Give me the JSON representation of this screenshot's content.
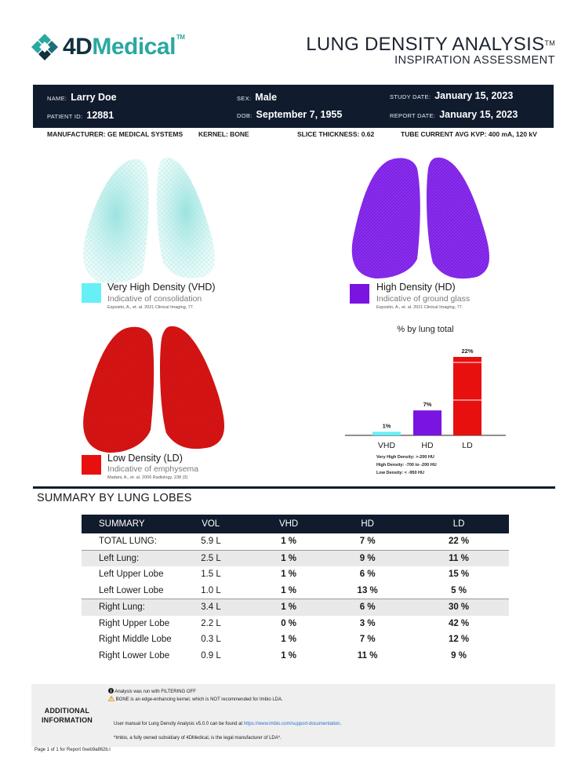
{
  "header": {
    "logo_4d": "4D",
    "logo_medical": "Medical",
    "logo_tm": "TM",
    "title": "LUNG DENSITY ANALYSIS",
    "title_tm": "TM",
    "subtitle": "INSPIRATION ASSESSMENT"
  },
  "patient": {
    "name_label": "NAME:",
    "name": "Larry Doe",
    "sex_label": "SEX:",
    "sex": "Male",
    "study_date_label": "STUDY DATE:",
    "study_date": "January 15, 2023",
    "patient_id_label": "PATIENT ID:",
    "patient_id": "12881",
    "dob_label": "DOB:",
    "dob": "September 7, 1955",
    "report_date_label": "REPORT DATE:",
    "report_date": "January 15, 2023"
  },
  "scan_meta": {
    "manufacturer": "MANUFACTURER: GE MEDICAL SYSTEMS",
    "kernel": "KERNEL: BONE",
    "slice_thickness": "SLICE THICKNESS: 0.62",
    "tube_current": "TUBE CURRENT AVG KVP: 400 mA, 120 kV"
  },
  "colors": {
    "vhd": "#66f0f6",
    "hd": "#7a14e0",
    "ld": "#e80f0f",
    "navy": "#111b2e",
    "teal": "#2aa8a1"
  },
  "legends": {
    "vhd": {
      "title": "Very High Density (VHD)",
      "sub": "Indicative of consolidation",
      "cite": "Esposito, A., et. al. 2021 Clinical Imaging, 77."
    },
    "hd": {
      "title": "High Density (HD)",
      "sub": "Indicative of ground glass",
      "cite": "Esposito, A., et. al. 2021 Clinical Imaging, 77."
    },
    "ld": {
      "title": "Low Density (LD)",
      "sub": "Indicative of emphysema",
      "cite": "Madani, A., et. al. 2006 Radiology, 238 (3)"
    }
  },
  "chart_data": {
    "type": "bar",
    "title": "% by lung total",
    "categories": [
      "VHD",
      "HD",
      "LD"
    ],
    "values": [
      1,
      7,
      22
    ],
    "value_labels": [
      "1%",
      "7%",
      "22%"
    ],
    "colors": [
      "#66f0f6",
      "#7a14e0",
      "#e80f0f"
    ],
    "ylim": [
      0,
      22
    ],
    "grid": false
  },
  "density_notes": [
    "Very High Density: >-200 HU",
    "High Density: -700 to -200 HU",
    "Low Density: < -950 HU"
  ],
  "summary": {
    "title": "SUMMARY BY LUNG LOBES",
    "headers": [
      "SUMMARY",
      "VOL",
      "VHD",
      "HD",
      "LD"
    ],
    "rows": [
      {
        "name": "TOTAL LUNG:",
        "vol": "5.9 L",
        "vhd": "1 %",
        "hd": "7 %",
        "ld": "22 %",
        "shaded": false
      },
      {
        "name": "Left Lung:",
        "vol": "2.5 L",
        "vhd": "1 %",
        "hd": "9 %",
        "ld": "11 %",
        "shaded": true
      },
      {
        "name": "Left Upper Lobe",
        "vol": "1.5 L",
        "vhd": "1 %",
        "hd": "6 %",
        "ld": "15 %",
        "shaded": false
      },
      {
        "name": "Left Lower Lobe",
        "vol": "1.0 L",
        "vhd": "1 %",
        "hd": "13 %",
        "ld": "5 %",
        "shaded": false
      },
      {
        "name": "Right Lung:",
        "vol": "3.4 L",
        "vhd": "1 %",
        "hd": "6 %",
        "ld": "30 %",
        "shaded": true
      },
      {
        "name": "Right Upper Lobe",
        "vol": "2.2 L",
        "vhd": "0 %",
        "hd": "3 %",
        "ld": "42 %",
        "shaded": false
      },
      {
        "name": "Right Middle Lobe",
        "vol": "0.3 L",
        "vhd": "1 %",
        "hd": "7 %",
        "ld": "12 %",
        "shaded": false
      },
      {
        "name": "Right Lower Lobe",
        "vol": "0.9 L",
        "vhd": "1 %",
        "hd": "11 %",
        "ld": "9 %",
        "shaded": false
      }
    ]
  },
  "additional": {
    "label": "ADDITIONAL INFORMATION",
    "filtering": "Analysis was run with FILTERING OFF",
    "kernel_warning": "BONE is an edge-enhancing kernel, which is NOT recommended for Imbio LDA.",
    "manual_prefix": "User manual for Lung Density Analysis v5.0.0 can be found at ",
    "manual_link": "https://www.imbio.com/support-documentation",
    "manual_suffix": ".",
    "legal": "*Imbio, a fully owned subsidiary of 4DMedical, is the legal manufacturer of LDA*."
  },
  "footer": "Page 1 of 1 for Report 0xeb9a862b.l"
}
